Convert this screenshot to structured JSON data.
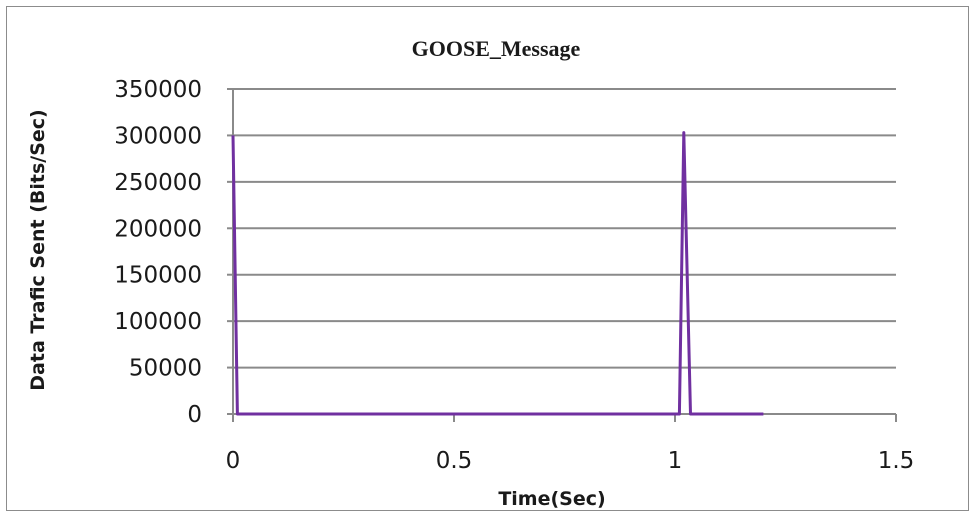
{
  "chart_data": {
    "type": "line",
    "title": "GOOSE_Message",
    "xlabel": "Time(Sec)",
    "ylabel": "Data Trafic Sent (Bits/Sec)",
    "xlim": [
      0,
      1.5
    ],
    "ylim": [
      0,
      350000
    ],
    "x_ticks": [
      "0",
      "0.5",
      "1",
      "1.5"
    ],
    "y_ticks": [
      "0",
      "50000",
      "100000",
      "150000",
      "200000",
      "250000",
      "300000",
      "350000"
    ],
    "grid": true,
    "legend": "none",
    "series": [
      {
        "color": "#7030a0",
        "x": [
          0,
          0.01,
          0.5,
          1.0,
          1.01,
          1.02,
          1.035,
          1.2
        ],
        "y": [
          300000,
          0,
          0,
          0,
          0,
          303000,
          0,
          0
        ]
      }
    ]
  }
}
